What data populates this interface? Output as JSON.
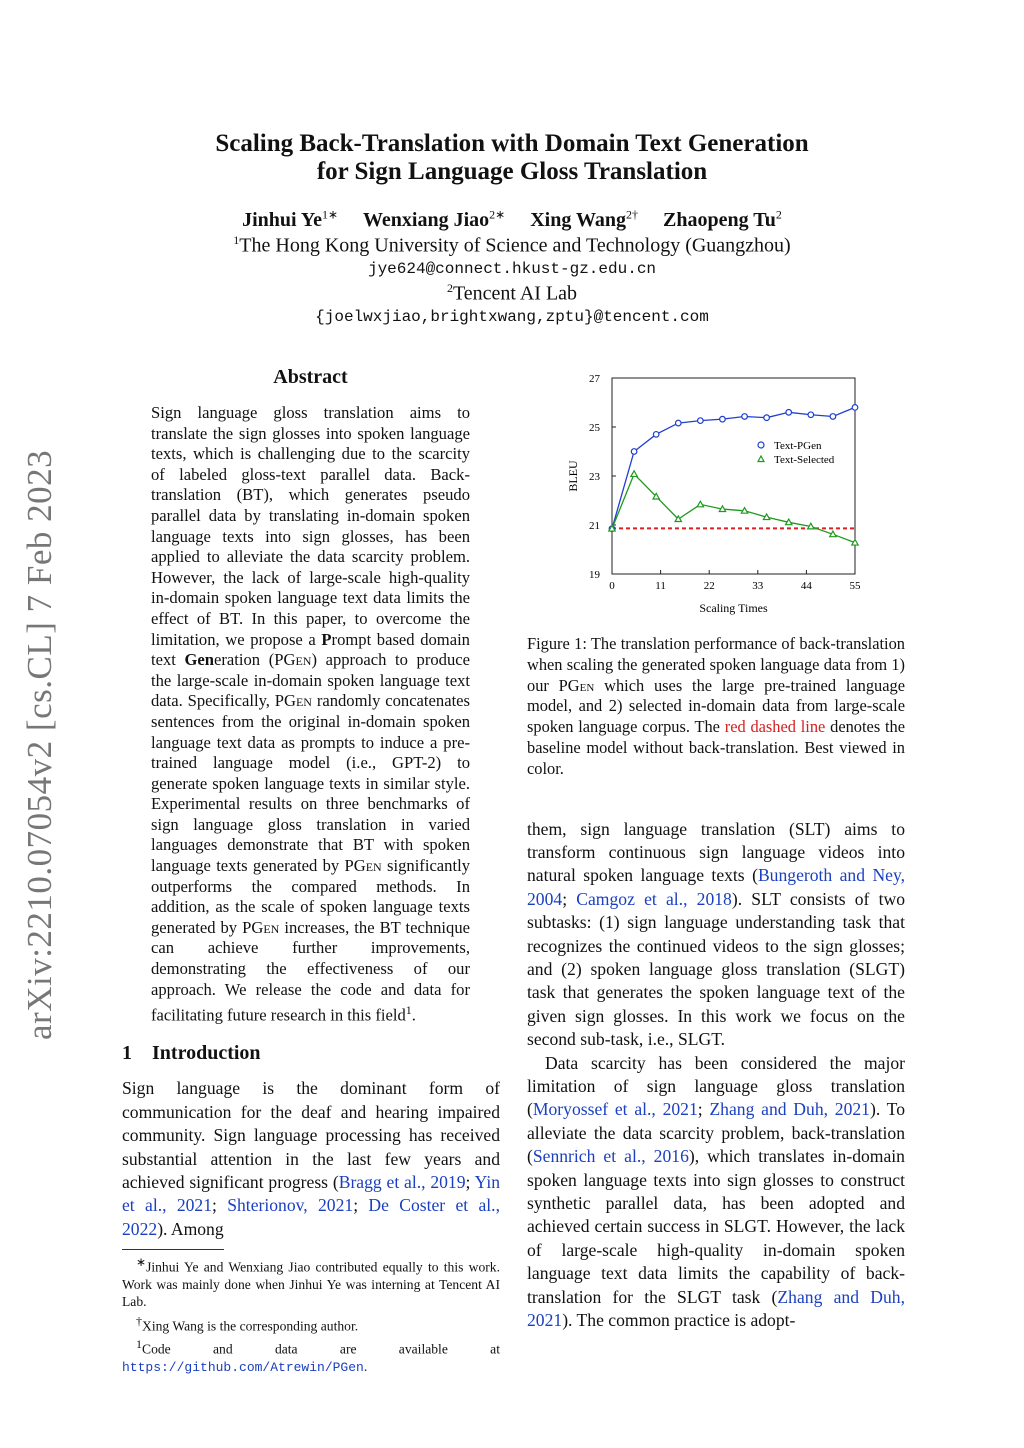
{
  "sidebar": {
    "arxiv_id": "arXiv:2210.07054v2  [cs.CL]  7 Feb 2023"
  },
  "header": {
    "title_line1": "Scaling Back-Translation with Domain Text Generation",
    "title_line2": "for Sign Language Gloss Translation",
    "authors": [
      {
        "name": "Jinhui Ye",
        "sup": "1∗"
      },
      {
        "name": "Wenxiang Jiao",
        "sup": "2∗"
      },
      {
        "name": "Xing Wang",
        "sup": "2†"
      },
      {
        "name": "Zhaopeng Tu",
        "sup": "2"
      }
    ],
    "aff1_sup": "1",
    "aff1": "The Hong Kong University of Science and Technology (Guangzhou)",
    "email1": "jye624@connect.hkust-gz.edu.cn",
    "aff2_sup": "2",
    "aff2": "Tencent AI Lab",
    "email2": "{joelwxjiao,brightxwang,zptu}@tencent.com"
  },
  "abstract": {
    "heading": "Abstract",
    "text": [
      {
        "t": "Sign language gloss translation aims to translate the sign glosses into spoken language texts, which is challenging due to the scarcity of labeled gloss-text parallel data. Back-translation (BT), which generates pseudo parallel data by translating in-domain spoken language texts into sign glosses, has been applied to alleviate the data scarcity problem. However, the lack of large-scale high-quality in-domain spoken language text data limits the effect of BT. In this paper, to overcome the limitation, we propose a "
      },
      {
        "t": "P",
        "b": 1
      },
      {
        "t": "rompt based domain text "
      },
      {
        "t": "Gen",
        "b": 1
      },
      {
        "t": "eration ("
      },
      {
        "t": "PGen",
        "sc": 1
      },
      {
        "t": ") approach to produce the large-scale in-domain spoken language text data. Specifically, "
      },
      {
        "t": "PGen",
        "sc": 1
      },
      {
        "t": " randomly concatenates sentences from the original in-domain spoken language text data as prompts to induce a pre-trained language model (i.e., GPT-2) to generate spoken language texts in similar style. Experimental results on three benchmarks of sign language gloss translation in varied languages demonstrate that BT with spoken language texts generated by "
      },
      {
        "t": "PGen",
        "sc": 1
      },
      {
        "t": " significantly outperforms the compared methods. In addition, as the scale of spoken language texts generated by "
      },
      {
        "t": "PGen",
        "sc": 1
      },
      {
        "t": " increases, the BT technique can achieve further improvements, demonstrating the effectiveness of our approach. We release the code and data for facilitating future research in this field"
      },
      {
        "t": "1",
        "sup": 1
      },
      {
        "t": "."
      }
    ]
  },
  "intro": {
    "number": "1",
    "heading": "Introduction",
    "p1": [
      {
        "t": "Sign language is the dominant form of communication for the deaf and hearing impaired community. Sign language processing has received substantial attention in the last few years and achieved significant progress ("
      },
      {
        "t": "Bragg et al., 2019",
        "l": 1
      },
      {
        "t": "; "
      },
      {
        "t": "Yin et al., 2021",
        "l": 1
      },
      {
        "t": "; "
      },
      {
        "t": "Shterionov, 2021",
        "l": 1
      },
      {
        "t": "; "
      },
      {
        "t": "De Coster et al., 2022",
        "l": 1
      },
      {
        "t": "). Among"
      }
    ],
    "p2": [
      {
        "t": "them, sign language translation (SLT) aims to transform continuous sign language videos into natural spoken language texts ("
      },
      {
        "t": "Bungeroth and Ney, 2004",
        "l": 1
      },
      {
        "t": "; "
      },
      {
        "t": "Camgoz et al., 2018",
        "l": 1
      },
      {
        "t": "). SLT consists of two subtasks: (1) sign language understanding task that recognizes the continued videos to the sign glosses; and (2) spoken language gloss translation (SLGT) task that generates the spoken language text of the given sign glosses. In this work we focus on the second sub-task, i.e., SLGT."
      }
    ],
    "p3": [
      {
        "t": "Data scarcity has been considered the major limitation of sign language gloss translation ("
      },
      {
        "t": "Moryossef et al., 2021",
        "l": 1
      },
      {
        "t": "; "
      },
      {
        "t": "Zhang and Duh, 2021",
        "l": 1
      },
      {
        "t": "). To alleviate the data scarcity problem, back-translation ("
      },
      {
        "t": "Sennrich et al., 2016",
        "l": 1
      },
      {
        "t": "), which translates in-domain spoken language texts into sign glosses to construct synthetic parallel data, has been adopted and achieved certain success in SLGT. However, the lack of large-scale high-quality in-domain spoken language text data limits the capability of back-translation for the SLGT task ("
      },
      {
        "t": "Zhang and Duh, 2021",
        "l": 1
      },
      {
        "t": "). The common practice is adopt-"
      }
    ]
  },
  "footnotes": {
    "f1": [
      {
        "t": "∗",
        "sup": 1
      },
      {
        "t": "Jinhui Ye and Wenxiang Jiao contributed equally to this work. Work was mainly done when Jinhui Ye was interning at Tencent AI Lab."
      }
    ],
    "f2": [
      {
        "t": "†",
        "sup": 1
      },
      {
        "t": "Xing Wang is the corresponding author."
      }
    ],
    "f3": [
      {
        "t": "1",
        "sup": 1
      },
      {
        "t": "Code and data are available at "
      },
      {
        "t": "https://github.com/Atrewin/PGen",
        "l": 1,
        "m": 1
      },
      {
        "t": "."
      }
    ]
  },
  "figure": {
    "caption": [
      {
        "t": "Figure 1: The translation performance of back-translation when scaling the generated spoken language data from 1) our "
      },
      {
        "t": "PGen",
        "sc": 1
      },
      {
        "t": " which uses the large pre-trained language model, and 2) selected in-domain data from large-scale spoken language corpus. The "
      },
      {
        "t": "red dashed line",
        "r": 1
      },
      {
        "t": " denotes the baseline model without back-translation. Best viewed in color."
      }
    ]
  },
  "chart_data": {
    "type": "line",
    "xlabel": "Scaling Times",
    "ylabel": "BLEU",
    "xlim": [
      0,
      55
    ],
    "ylim": [
      19,
      27
    ],
    "xticks": [
      0,
      11,
      22,
      33,
      44,
      55
    ],
    "yticks": [
      19,
      21,
      23,
      25,
      27
    ],
    "grid": false,
    "legend_position": "right",
    "x": [
      0,
      5,
      10,
      15,
      20,
      25,
      30,
      35,
      40,
      45,
      50,
      55
    ],
    "series": [
      {
        "name": "Text-PGen",
        "color": "#1f3fd0",
        "marker": "circle",
        "values": [
          20.85,
          24.0,
          24.7,
          25.16,
          25.26,
          25.32,
          25.43,
          25.38,
          25.6,
          25.5,
          25.43,
          25.8
        ]
      },
      {
        "name": "Text-Selected",
        "color": "#1e9a1e",
        "marker": "triangle",
        "values": [
          20.85,
          23.08,
          22.16,
          21.24,
          21.84,
          21.65,
          21.58,
          21.32,
          21.11,
          20.94,
          20.62,
          20.28
        ]
      }
    ],
    "baseline": {
      "value": 20.86,
      "color": "#e02020",
      "style": "dashed"
    }
  }
}
